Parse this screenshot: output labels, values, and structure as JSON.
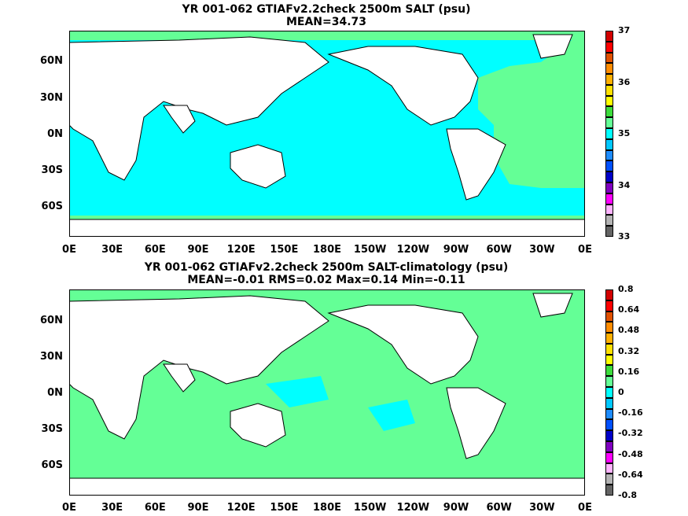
{
  "panels": [
    {
      "title_line1": "YR 001-062 GTIAFv2.2check 2500m SALT (psu)",
      "title_line2": "MEAN=34.73",
      "ocean_color": "#00ffff",
      "colorbar_labels": [
        "37",
        "36",
        "35",
        "34",
        "33"
      ],
      "colorbar_colors": [
        "#d20000",
        "#ff0000",
        "#e05000",
        "#ff8c00",
        "#ffb000",
        "#ffe000",
        "#ffff00",
        "#3cdc3c",
        "#64ff96",
        "#00ffff",
        "#00c8ff",
        "#1e8cff",
        "#0050ff",
        "#0000c8",
        "#8000c0",
        "#ff00ff",
        "#ffb4ff",
        "#b4b4b4",
        "#646464"
      ]
    },
    {
      "title_line1": "YR 001-062 GTIAFv2.2check 2500m SALT-climatology (psu)",
      "title_line2": "MEAN=-0.01   RMS=0.02   Max=0.14   Min=-0.11",
      "ocean_color": "#64ff96",
      "colorbar_labels": [
        "0.8",
        "0.64",
        "0.48",
        "0.32",
        "0.16",
        "0",
        "-0.16",
        "-0.32",
        "-0.48",
        "-0.64",
        "-0.8"
      ],
      "colorbar_colors": [
        "#d20000",
        "#ff0000",
        "#e05000",
        "#ff8c00",
        "#ffb000",
        "#ffe000",
        "#ffff00",
        "#3cdc3c",
        "#64ff96",
        "#00ffff",
        "#00c8ff",
        "#1e8cff",
        "#0050ff",
        "#0000c8",
        "#8000c0",
        "#ff00ff",
        "#ffb4ff",
        "#b4b4b4",
        "#646464"
      ]
    }
  ],
  "x_tick_labels": [
    "0E",
    "30E",
    "60E",
    "90E",
    "120E",
    "150E",
    "180E",
    "150W",
    "120W",
    "90W",
    "60W",
    "30W",
    "0E"
  ],
  "y_tick_labels": [
    "60N",
    "30N",
    "0N",
    "30S",
    "60S"
  ]
}
